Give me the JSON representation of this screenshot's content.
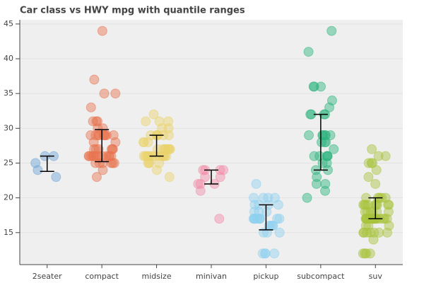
{
  "chart_data": {
    "type": "jitter",
    "title": "Car class vs HWY mpg with quantile ranges",
    "categories": [
      "2seater",
      "compact",
      "midsize",
      "minivan",
      "pickup",
      "subcompact",
      "suv"
    ],
    "colors": [
      "#6fa3d8",
      "#e8734f",
      "#ead36a",
      "#f28ba8",
      "#8fd0f0",
      "#2db37e",
      "#a8c43c"
    ],
    "points": [
      [
        26,
        25,
        26,
        23,
        24
      ],
      [
        29,
        29,
        31,
        30,
        26,
        26,
        27,
        26,
        25,
        28,
        27,
        25,
        25,
        25,
        25,
        24,
        25,
        23,
        27,
        26,
        26,
        26,
        26,
        29,
        44,
        29,
        30,
        26,
        29,
        29,
        29,
        28,
        29,
        26,
        26,
        26,
        33,
        35,
        37,
        35,
        29,
        27,
        31,
        31,
        27,
        26,
        27
      ],
      [
        26,
        26,
        27,
        26,
        27,
        28,
        29,
        25,
        24,
        27,
        26,
        27,
        29,
        27,
        26,
        26,
        30,
        29,
        29,
        28,
        31,
        32,
        27,
        26,
        26,
        25,
        26,
        29,
        27,
        26,
        26,
        23,
        25,
        25,
        26,
        29,
        31,
        31,
        28,
        27,
        30
      ],
      [
        24,
        24,
        22,
        22,
        24,
        24,
        17,
        22,
        21,
        23,
        23
      ],
      [
        20,
        15,
        17,
        17,
        17,
        19,
        12,
        17,
        19,
        17,
        17,
        17,
        12,
        12,
        16,
        18,
        15,
        16,
        17,
        17,
        20,
        18,
        20,
        22,
        19,
        17,
        16,
        18,
        12,
        20,
        15,
        16,
        19
      ],
      [
        26,
        25,
        28,
        27,
        29,
        26,
        26,
        29,
        24,
        24,
        28,
        36,
        36,
        29,
        32,
        32,
        33,
        32,
        29,
        32,
        34,
        36,
        44,
        41,
        29,
        26,
        28,
        29,
        22,
        26,
        20,
        23,
        21,
        25,
        22
      ],
      [
        17,
        19,
        18,
        14,
        15,
        17,
        19,
        20,
        19,
        15,
        17,
        12,
        12,
        16,
        15,
        17,
        17,
        15,
        12,
        17,
        17,
        19,
        17,
        20,
        17,
        18,
        22,
        17,
        19,
        19,
        17,
        12,
        17,
        17,
        15,
        19,
        18,
        19,
        20,
        20,
        17,
        16,
        17,
        24,
        20,
        26,
        27,
        26,
        25,
        25,
        23,
        25,
        16,
        17,
        19,
        15,
        17,
        18,
        18,
        18,
        17,
        15
      ]
    ],
    "lower": [
      23.8,
      25.2,
      26,
      22,
      15.4,
      24,
      17
    ],
    "upper": [
      26,
      29.8,
      29,
      24,
      19,
      32,
      20
    ],
    "ylim": [
      10.4,
      45.6
    ],
    "yticks": [
      15,
      20,
      25,
      30,
      35,
      40,
      45
    ],
    "grid": true
  }
}
